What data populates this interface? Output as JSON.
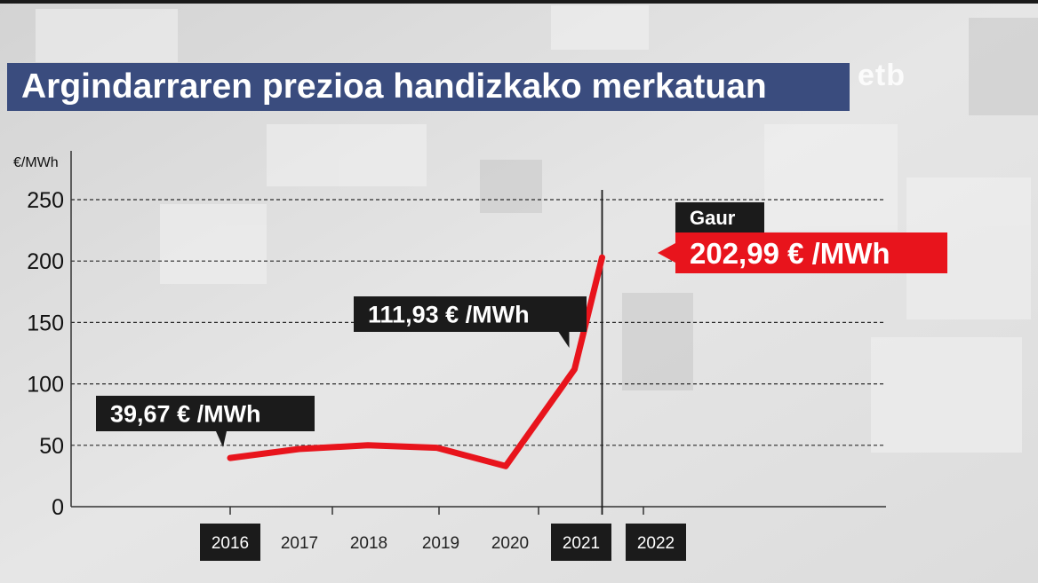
{
  "header": {
    "title": "Argindarraren prezioa handizkako merkatuan",
    "logo": "etb"
  },
  "colors": {
    "title_bg": "#3a4c7e",
    "line": "#e8141c",
    "label_dark": "#1b1b1b",
    "label_red": "#e8141c"
  },
  "chart_data": {
    "type": "line",
    "ylabel": "€/MWh",
    "ylim": [
      0,
      250
    ],
    "yticks": [
      0,
      50,
      100,
      150,
      200,
      250
    ],
    "grid": true,
    "categories": [
      "2016",
      "2017",
      "2018",
      "2019",
      "2020",
      "2021",
      "2022"
    ],
    "highlighted_categories": [
      "2016",
      "2021",
      "2022"
    ],
    "series": [
      {
        "points": [
          {
            "x": 2016.0,
            "y": 39.67
          },
          {
            "x": 2017.0,
            "y": 47
          },
          {
            "x": 2018.0,
            "y": 50
          },
          {
            "x": 2019.0,
            "y": 48
          },
          {
            "x": 2020.0,
            "y": 33
          },
          {
            "x": 2021.0,
            "y": 111.93
          },
          {
            "x": 2021.4,
            "y": 202.99
          }
        ]
      }
    ],
    "annotations": [
      {
        "text": "39,67 € /MWh",
        "x": 2016.0,
        "y": 39.67,
        "style": "dark"
      },
      {
        "text": "111,93 € /MWh",
        "x": 2021.0,
        "y": 111.93,
        "style": "dark"
      },
      {
        "text": "Gaur",
        "x": 2021.4,
        "y": 202.99,
        "style": "dark-small"
      },
      {
        "text": "202,99 € /MWh",
        "x": 2021.4,
        "y": 202.99,
        "style": "red"
      }
    ],
    "today_marker_x": 2021.4
  }
}
